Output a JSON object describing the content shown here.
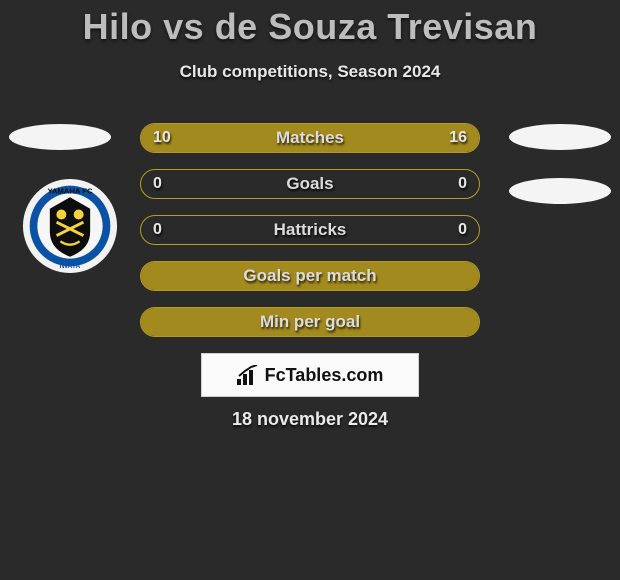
{
  "title": "Hilo vs de Souza Trevisan",
  "subtitle": "Club competitions, Season 2024",
  "date": "18 november 2024",
  "attribution": "FcTables.com",
  "colors": {
    "background": "#2a2a2a",
    "bar_olive": "#a38a1e",
    "bar_olive_border": "#b69b22",
    "bar_border_only": "#b89e24",
    "badge_outer": "#f2f2f2",
    "badge_ring": "#0a52a6",
    "badge_inner": "#f6f6f6"
  },
  "stats": [
    {
      "label": "Matches",
      "left_value": "10",
      "right_value": "16",
      "left_pct": 38,
      "right_pct": 62,
      "fill": "both",
      "left_color": "#a38a1e",
      "right_color": "#a38a1e",
      "border_color": "#b69b22"
    },
    {
      "label": "Goals",
      "left_value": "0",
      "right_value": "0",
      "left_pct": 0,
      "right_pct": 0,
      "fill": "none",
      "border_color": "#b89e24"
    },
    {
      "label": "Hattricks",
      "left_value": "0",
      "right_value": "0",
      "left_pct": 0,
      "right_pct": 0,
      "fill": "none",
      "border_color": "#b89e24"
    },
    {
      "label": "Goals per match",
      "left_value": "",
      "right_value": "",
      "left_pct": 100,
      "right_pct": 0,
      "fill": "full",
      "left_color": "#a38a1e",
      "border_color": "#b69b22"
    },
    {
      "label": "Min per goal",
      "left_value": "",
      "right_value": "",
      "left_pct": 100,
      "right_pct": 0,
      "fill": "full",
      "left_color": "#a38a1e",
      "border_color": "#b69b22"
    }
  ]
}
